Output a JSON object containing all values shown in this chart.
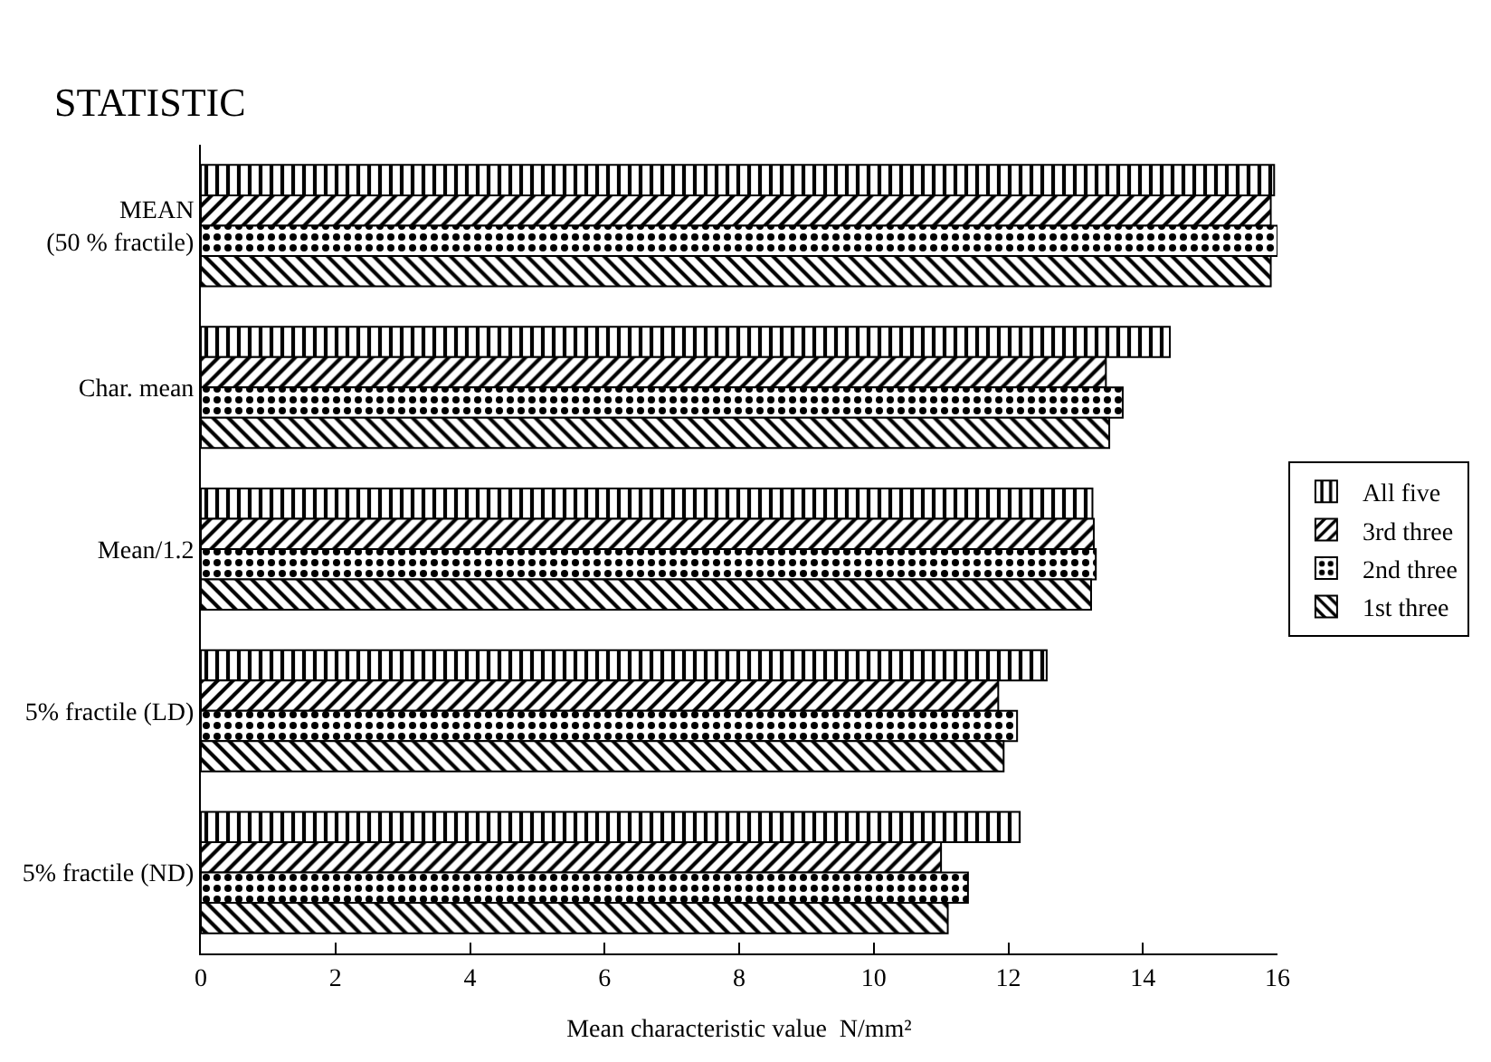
{
  "chart_data": {
    "type": "bar",
    "orientation": "horizontal",
    "ylabel": "STATISTIC",
    "xlabel": "Mean characteristic value  N/mm²",
    "categories": [
      "MEAN\n(50 % fractile)",
      "Char. mean",
      "Mean/1.2",
      "5% fractile (LD)",
      "5% fractile (ND)"
    ],
    "series": [
      {
        "name": "All five",
        "color": "#000000",
        "values": [
          15.95,
          14.4,
          13.25,
          12.57,
          12.17
        ]
      },
      {
        "name": "3rd three",
        "color": "#000000",
        "values": [
          15.9,
          13.45,
          13.27,
          11.85,
          11.0
        ]
      },
      {
        "name": "2nd three",
        "color": "#000000",
        "values": [
          16.0,
          13.7,
          13.3,
          12.13,
          11.4
        ]
      },
      {
        "name": "1st three",
        "color": "#000000",
        "values": [
          15.9,
          13.5,
          13.23,
          11.93,
          11.1
        ]
      }
    ],
    "xlim": [
      0,
      16
    ],
    "xticks": [
      0,
      2,
      4,
      6,
      8,
      10,
      12,
      14,
      16
    ],
    "legend": "right"
  }
}
